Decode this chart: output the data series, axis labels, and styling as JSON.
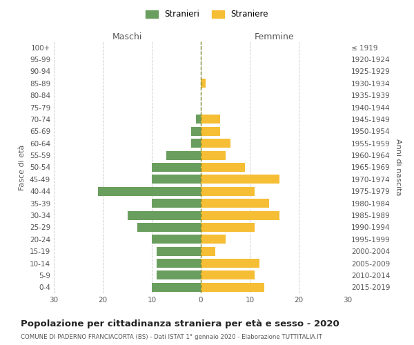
{
  "age_groups": [
    "100+",
    "95-99",
    "90-94",
    "85-89",
    "80-84",
    "75-79",
    "70-74",
    "65-69",
    "60-64",
    "55-59",
    "50-54",
    "45-49",
    "40-44",
    "35-39",
    "30-34",
    "25-29",
    "20-24",
    "15-19",
    "10-14",
    "5-9",
    "0-4"
  ],
  "birth_years": [
    "≤ 1919",
    "1920-1924",
    "1925-1929",
    "1930-1934",
    "1935-1939",
    "1940-1944",
    "1945-1949",
    "1950-1954",
    "1955-1959",
    "1960-1964",
    "1965-1969",
    "1970-1974",
    "1975-1979",
    "1980-1984",
    "1985-1989",
    "1990-1994",
    "1995-1999",
    "2000-2004",
    "2005-2009",
    "2010-2014",
    "2015-2019"
  ],
  "males": [
    0,
    0,
    0,
    0,
    0,
    0,
    1,
    2,
    2,
    7,
    10,
    10,
    21,
    10,
    15,
    13,
    10,
    9,
    9,
    9,
    10
  ],
  "females": [
    0,
    0,
    0,
    1,
    0,
    0,
    4,
    4,
    6,
    5,
    9,
    16,
    11,
    14,
    16,
    11,
    5,
    3,
    12,
    11,
    13
  ],
  "male_color": "#6a9e5e",
  "female_color": "#f5be35",
  "background_color": "#ffffff",
  "grid_color": "#cccccc",
  "title": "Popolazione per cittadinanza straniera per età e sesso - 2020",
  "subtitle": "COMUNE DI PADERNO FRANCIACORTA (BS) - Dati ISTAT 1° gennaio 2020 - Elaborazione TUTTITALIA.IT",
  "ylabel_left": "Fasce di età",
  "ylabel_right": "Anni di nascita",
  "xlabel_left": "Maschi",
  "xlabel_right": "Femmine",
  "legend_male": "Stranieri",
  "legend_female": "Straniere",
  "xlim": 30
}
